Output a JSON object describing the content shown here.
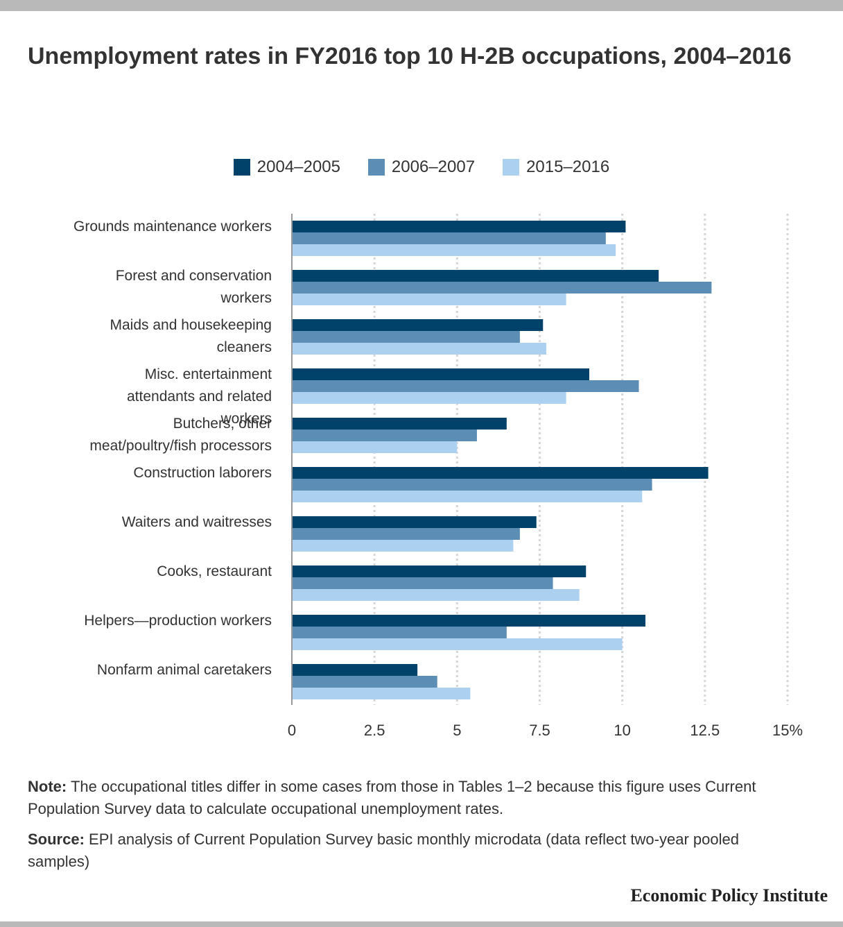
{
  "title": "Unemployment rates in FY2016 top 10 H-2B occupations, 2004–2016",
  "note_label": "Note:",
  "note_text": "The occupational titles differ in some cases from those in Tables 1–2 because this figure uses Current Population Survey data to calculate occupational unemployment rates.",
  "source_label": "Source:",
  "source_text": "EPI analysis of Current Population Survey basic monthly microdata (data reflect two-year pooled samples)",
  "brand": "Economic Policy Institute",
  "chart_data": {
    "type": "bar",
    "orientation": "horizontal",
    "categories": [
      "Grounds maintenance workers",
      "Forest and conservation workers",
      "Maids and housekeeping cleaners",
      "Misc. entertainment attendants and related workers",
      "Butchers, other meat/poultry/fish processors",
      "Construction laborers",
      "Waiters and waitresses",
      "Cooks, restaurant",
      "Helpers—production workers",
      "Nonfarm animal caretakers"
    ],
    "category_lines": [
      [
        "Grounds maintenance workers"
      ],
      [
        "Forest and conservation",
        "workers"
      ],
      [
        "Maids and housekeeping",
        "cleaners"
      ],
      [
        "Misc. entertainment",
        "attendants and related",
        "workers"
      ],
      [
        "Butchers, other",
        "meat/poultry/fish processors"
      ],
      [
        "Construction laborers"
      ],
      [
        "Waiters and waitresses"
      ],
      [
        "Cooks, restaurant"
      ],
      [
        "Helpers—production workers"
      ],
      [
        "Nonfarm animal caretakers"
      ]
    ],
    "series": [
      {
        "name": "2004–2005",
        "color": "#00426a",
        "values": [
          10.1,
          11.1,
          7.6,
          9.0,
          6.5,
          12.6,
          7.4,
          8.9,
          10.7,
          3.8
        ]
      },
      {
        "name": "2006–2007",
        "color": "#5b8db5",
        "values": [
          9.5,
          12.7,
          6.9,
          10.5,
          5.6,
          10.9,
          6.9,
          7.9,
          6.5,
          4.4
        ]
      },
      {
        "name": "2015–2016",
        "color": "#acd0f0",
        "values": [
          9.8,
          8.3,
          7.7,
          8.3,
          5.0,
          10.6,
          6.7,
          8.7,
          10.0,
          5.4
        ]
      }
    ],
    "xlim": [
      0,
      15
    ],
    "xticks": [
      0,
      2.5,
      5,
      7.5,
      10,
      12.5,
      15
    ],
    "xtick_labels": [
      "0",
      "2.5",
      "5",
      "7.5",
      "10",
      "12.5",
      "15%"
    ],
    "grid": true,
    "legend_position": "top"
  }
}
